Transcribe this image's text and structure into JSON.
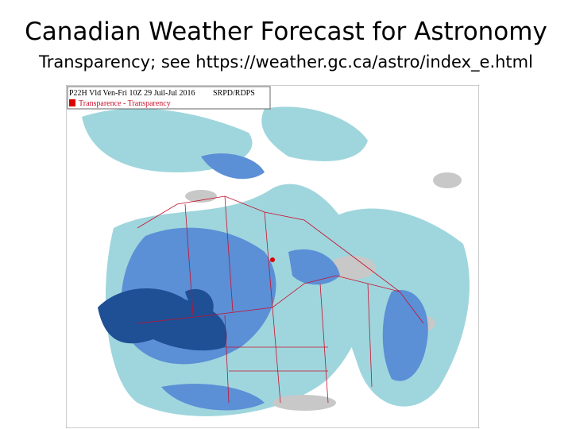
{
  "slide": {
    "title": "Canadian Weather Forecast for Astronomy",
    "subtitle": "Transparency; see https://weather.gc.ca/astro/index_e.html"
  },
  "map": {
    "header": {
      "run": "P22H Vld Ven-Fri 10Z 29 Juil-Jul 2016",
      "model": "SRPD/RDPS",
      "product": "Transparence - Transparency"
    }
  }
}
